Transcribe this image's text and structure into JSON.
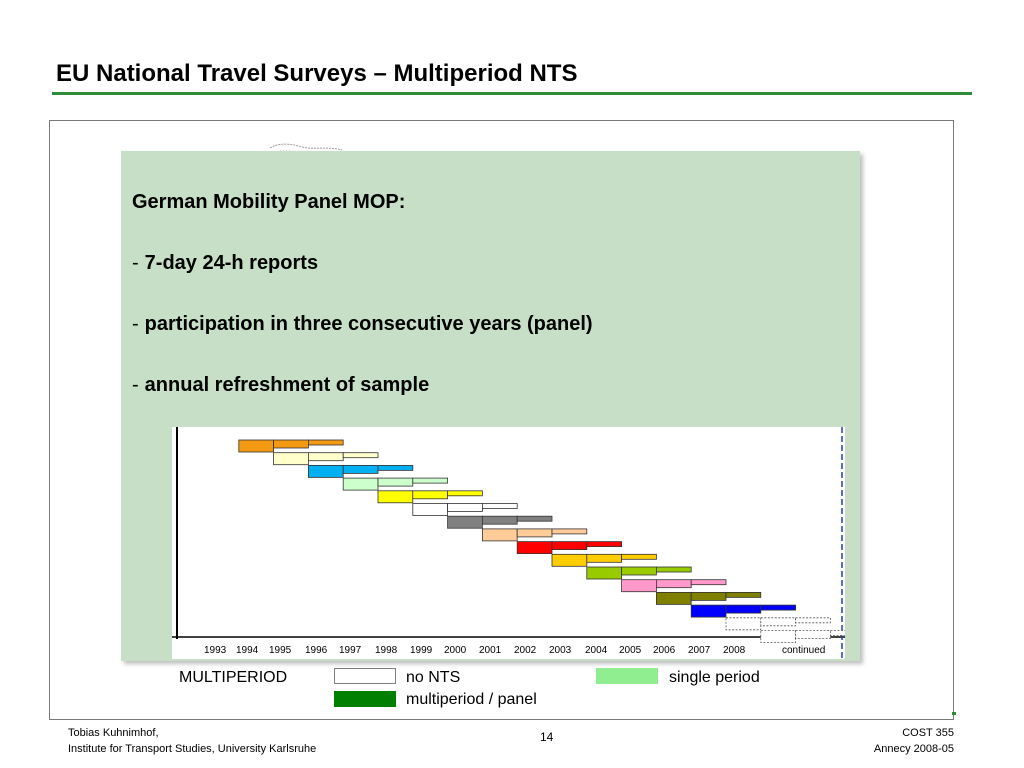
{
  "slide": {
    "title": "EU National Travel Surveys – Multiperiod NTS",
    "page_number": "14"
  },
  "panel": {
    "heading": "German Mobility Panel MOP:",
    "bullets": [
      {
        "dash": "-",
        "text": "7-day 24-h reports"
      },
      {
        "dash": "-",
        "text": "participation in three consecutive years (panel)"
      },
      {
        "dash": "-",
        "text": "annual refreshment of sample"
      }
    ]
  },
  "legend": {
    "multiperiod": "MULTIPERIOD",
    "no_nts": "no  NTS",
    "single_period": "single  period",
    "multiperiod_panel": "multiperiod  /  panel",
    "colors": {
      "no_nts": "#ffffff",
      "single_period": "#90ee90",
      "multiperiod_panel": "#008000"
    }
  },
  "footer": {
    "author": "Tobias Kuhnimhof,",
    "institute": "Institute for Transport Studies, University Karlsruhe",
    "conference": "COST 355",
    "venue": "Annecy 2008-05"
  },
  "chart_data": {
    "type": "bar",
    "subtype": "gantt",
    "x_ticks": [
      "1993",
      "1994",
      "1995",
      "1996",
      "1997",
      "1998",
      "1999",
      "2000",
      "2001",
      "2002",
      "2003",
      "2004",
      "2005",
      "2006",
      "2007",
      "2008",
      "continued"
    ],
    "xlim": [
      1993,
      2010
    ],
    "cohorts": [
      {
        "start": 1994,
        "color": "#f39a12",
        "style": "solid"
      },
      {
        "start": 1995,
        "color": "#ffffcc",
        "style": "solid"
      },
      {
        "start": 1996,
        "color": "#00b0f0",
        "style": "solid"
      },
      {
        "start": 1997,
        "color": "#ccffcc",
        "style": "solid"
      },
      {
        "start": 1998,
        "color": "#ffff00",
        "style": "solid"
      },
      {
        "start": 1999,
        "color": "#ffffff",
        "style": "solid"
      },
      {
        "start": 2000,
        "color": "#808080",
        "style": "solid"
      },
      {
        "start": 2001,
        "color": "#ffcc99",
        "style": "solid"
      },
      {
        "start": 2002,
        "color": "#ff0000",
        "style": "solid"
      },
      {
        "start": 2003,
        "color": "#ffcc00",
        "style": "solid"
      },
      {
        "start": 2004,
        "color": "#99cc00",
        "style": "solid"
      },
      {
        "start": 2005,
        "color": "#ff99cc",
        "style": "solid"
      },
      {
        "start": 2006,
        "color": "#808000",
        "style": "solid"
      },
      {
        "start": 2007,
        "color": "#0000ff",
        "style": "solid"
      },
      {
        "start": 2008,
        "color": "#ffffff",
        "style": "dotted"
      },
      {
        "start": 2009,
        "color": "#ffffff",
        "style": "dotted"
      }
    ],
    "years_per_cohort": 3,
    "grid": false,
    "legend_position": "bottom"
  }
}
